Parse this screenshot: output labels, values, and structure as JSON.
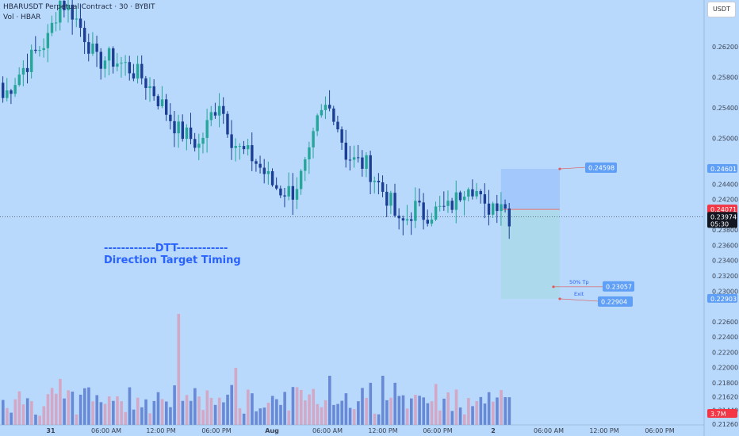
{
  "header": {
    "title": "HBARUSDT Perpetual Contract · 30 · BYBIT",
    "vol_label": "Vol · HBAR"
  },
  "currency_button": "USDT",
  "annotations": {
    "line1": "------------DTT------------",
    "line2": "Direction Target Timing"
  },
  "colors": {
    "background": "#b8d9fb",
    "bull": "#26a69a",
    "bear": "#1c3f95",
    "vol_bull": "#d6a2c0",
    "vol_bear": "#5e7fd2",
    "target_zone": "#9fc6fb",
    "stop_zone": "#a9d9e9",
    "label_blue": "#5f9ff5",
    "price_red": "#f23645",
    "last_price_black": "#131722"
  },
  "chart_data": {
    "type": "candlestick",
    "interval_minutes": 30,
    "price_axis": {
      "range": [
        0.2125,
        0.2681
      ],
      "ticks": [
        0.262,
        0.258,
        0.254,
        0.25,
        0.244,
        0.242,
        0.238,
        0.236,
        0.234,
        0.232,
        0.23,
        0.226,
        0.224,
        0.222,
        0.22,
        0.218,
        0.2162,
        0.2144,
        0.2126
      ],
      "tick_labels": [
        "0.26200",
        "0.25800",
        "0.25400",
        "0.25000",
        "0.24400",
        "0.24200",
        "0.23800",
        "0.23600",
        "0.23400",
        "0.23200",
        "0.23000",
        "0.22600",
        "0.22400",
        "0.22200",
        "0.22000",
        "0.21800",
        "0.21620",
        "0.21440",
        "0.21260"
      ]
    },
    "time_axis": {
      "labels": [
        "31",
        "06:00 AM",
        "12:00 PM",
        "06:00 PM",
        "Aug",
        "06:00 AM",
        "12:00 PM",
        "06:00 PM",
        "2",
        "06:00 AM",
        "12:00 PM",
        "06:00 PM"
      ]
    },
    "price_badges": [
      {
        "value": "0.24601",
        "color": "blue"
      },
      {
        "value": "0.24071",
        "color": "red"
      },
      {
        "value": "0.23974",
        "sub": "05:30",
        "color": "black"
      },
      {
        "value": "0.22903",
        "color": "blue"
      },
      {
        "value": "3.7M",
        "color": "red"
      }
    ],
    "position_tool": {
      "entry": 0.2407,
      "target": 0.246,
      "stop": 0.229,
      "labels": [
        {
          "text": "0.24598"
        },
        {
          "text": "50% Tp",
          "value": "0.23057"
        },
        {
          "text": "Exit",
          "value": "0.22904"
        }
      ]
    },
    "last_price": 0.23974,
    "anchors": [
      [
        0,
        0.2553
      ],
      [
        4,
        0.2585
      ],
      [
        8,
        0.2612
      ],
      [
        11,
        0.263
      ],
      [
        14,
        0.268
      ],
      [
        17,
        0.2665
      ],
      [
        20,
        0.2635
      ],
      [
        23,
        0.26
      ],
      [
        26,
        0.2605
      ],
      [
        30,
        0.2595
      ],
      [
        34,
        0.258
      ],
      [
        37,
        0.256
      ],
      [
        40,
        0.2535
      ],
      [
        43,
        0.251
      ],
      [
        46,
        0.25
      ],
      [
        48,
        0.249
      ],
      [
        51,
        0.253
      ],
      [
        53,
        0.255
      ],
      [
        56,
        0.25
      ],
      [
        58,
        0.2485
      ],
      [
        61,
        0.2475
      ],
      [
        64,
        0.2455
      ],
      [
        66,
        0.244
      ],
      [
        68,
        0.2432
      ],
      [
        71,
        0.243
      ],
      [
        73,
        0.245
      ],
      [
        75,
        0.2475
      ],
      [
        77,
        0.252
      ],
      [
        79,
        0.254
      ],
      [
        81,
        0.2535
      ],
      [
        84,
        0.248
      ],
      [
        86,
        0.247
      ],
      [
        89,
        0.2465
      ],
      [
        92,
        0.244
      ],
      [
        95,
        0.2415
      ],
      [
        97,
        0.2385
      ],
      [
        99,
        0.2395
      ],
      [
        101,
        0.241
      ],
      [
        103,
        0.24
      ],
      [
        106,
        0.2405
      ],
      [
        109,
        0.2408
      ],
      [
        111,
        0.242
      ],
      [
        114,
        0.2445
      ],
      [
        116,
        0.243
      ],
      [
        118,
        0.2405
      ],
      [
        120,
        0.2415
      ],
      [
        122,
        0.242
      ],
      [
        124,
        0.2397
      ]
    ],
    "volume_tall": [
      [
        43,
        3.5
      ],
      [
        57,
        1.8
      ],
      [
        80,
        1.55
      ],
      [
        93,
        1.55
      ]
    ]
  }
}
